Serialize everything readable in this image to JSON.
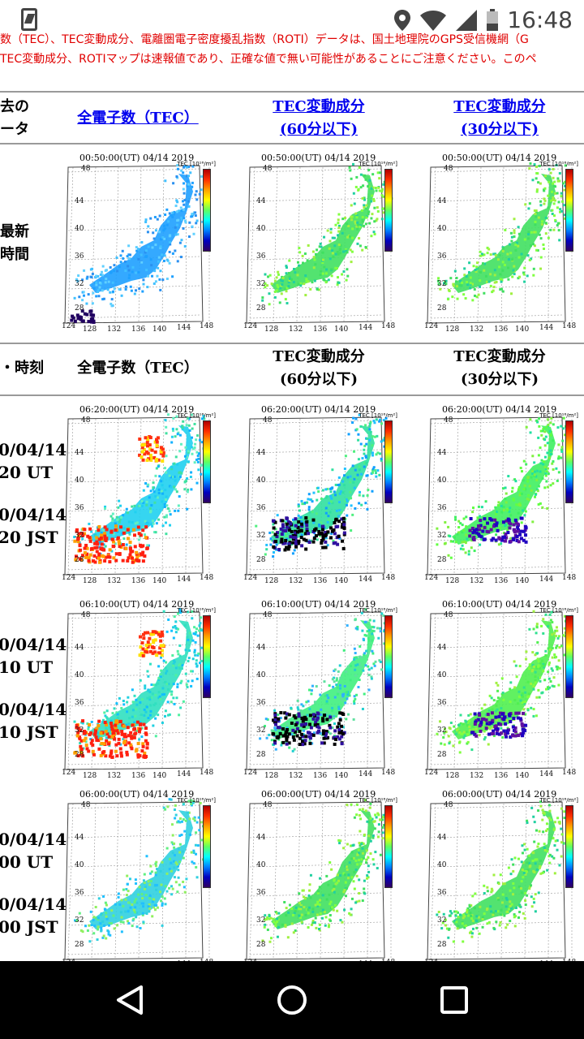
{
  "status_bar": {
    "time": "16:48"
  },
  "notice": {
    "line1": "数（TEC）、TEC変動成分、電離圏電子密度擾乱指数（ROTI）データは、国土地理院のGPS受信機網（G",
    "line2": "TEC変動成分、ROTIマップは速報値であり、正確な値で無い可能性があることにご注意ください。このペ"
  },
  "header1": {
    "col0_line1": "去の",
    "col0_line2": "ータ",
    "col1": "全電子数（TEC）",
    "col2_line1": "TEC変動成分",
    "col2_line2": "(60分以下)",
    "col3_line1": "TEC変動成分",
    "col3_line2": "(30分以下)"
  },
  "latest": {
    "line1": "最新",
    "line2": "時間"
  },
  "header2": {
    "col0": "・時刻",
    "col1": "全電子数（TEC）",
    "col2_line1": "TEC変動成分",
    "col2_line2": "(60分以下)",
    "col3_line1": "TEC変動成分",
    "col3_line2": "(30分以下)"
  },
  "rows": [
    {
      "date_ut": "0/04/14",
      "time_ut": "20 UT",
      "date_jst": "0/04/14",
      "time_jst": "20 JST"
    },
    {
      "date_ut": "0/04/14",
      "time_ut": "10 UT",
      "date_jst": "0/04/14",
      "time_jst": "10 JST"
    },
    {
      "date_ut": "0/04/14",
      "time_ut": "00 UT",
      "date_jst": "0/04/14",
      "time_jst": "00 JST"
    }
  ],
  "maps": {
    "unit": "TEC [10¹⁶/m²]",
    "latest_title": "00:50:00(UT)  04/14 2019",
    "row1_title": "06:20:00(UT)  04/14 2019",
    "row2_title": "06:10:00(UT)  04/14 2019",
    "row3_title": "06:00:00(UT)  04/14 2019"
  },
  "colors": {
    "notice": "#e00000",
    "link": "#0000ee",
    "rule": "#9a9a9a"
  }
}
